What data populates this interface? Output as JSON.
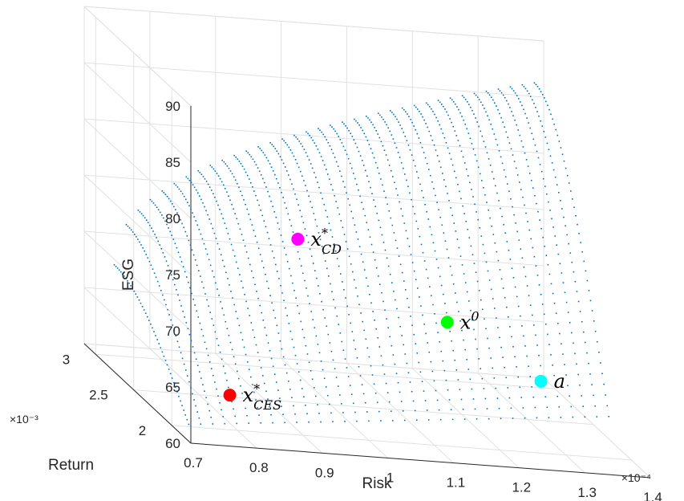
{
  "chart_data": {
    "type": "scatter3d",
    "axes": {
      "risk": {
        "label": "Risk",
        "range": [
          0.7,
          1.4
        ],
        "ticks": [
          0.7,
          0.8,
          0.9,
          1.0,
          1.1,
          1.2,
          1.3,
          1.4
        ],
        "tick_labels": [
          "0.7",
          "0.8",
          "0.9",
          "1",
          "1.1",
          "1.2",
          "1.3",
          "1.4"
        ],
        "multiplier_label": "×10⁻⁴"
      },
      "return": {
        "label": "Return",
        "range": [
          1.75,
          3.15
        ],
        "ticks": [
          2.0,
          2.5,
          3.0
        ],
        "tick_labels": [
          "2",
          "2.5",
          "3"
        ],
        "multiplier_label": "×10⁻³"
      },
      "esg": {
        "label": "ESG",
        "range": [
          60,
          90
        ],
        "ticks": [
          60,
          65,
          70,
          75,
          80,
          85,
          90
        ],
        "tick_labels": [
          "60",
          "65",
          "70",
          "75",
          "80",
          "85",
          "90"
        ]
      }
    },
    "grid": true,
    "surface": {
      "style": "dotted point cloud",
      "color": "#0072BD",
      "risk_span": [
        0.72,
        1.38
      ],
      "return_span": [
        1.95,
        3.1
      ],
      "esg_span": [
        60.5,
        86.5
      ]
    },
    "points": [
      {
        "label": "x*CES",
        "base": "x",
        "sup": "*",
        "sub": "CES",
        "risk": 0.8,
        "return": 2.1,
        "esg": 62.5,
        "color": "#ff0000"
      },
      {
        "label": "x*CD",
        "base": "x",
        "sup": "*",
        "sub": "CD",
        "risk": 0.95,
        "return": 2.5,
        "esg": 74.5,
        "color": "#ff00ff"
      },
      {
        "label": "x0",
        "base": "x",
        "sup": "0",
        "sub": "",
        "risk": 1.23,
        "return": 2.95,
        "esg": 65.5,
        "color": "#00ff00"
      },
      {
        "label": "a",
        "base": "a",
        "sup": "",
        "sub": "",
        "risk": 1.39,
        "return": 3.1,
        "esg": 60.0,
        "color": "#00ffff"
      }
    ]
  }
}
